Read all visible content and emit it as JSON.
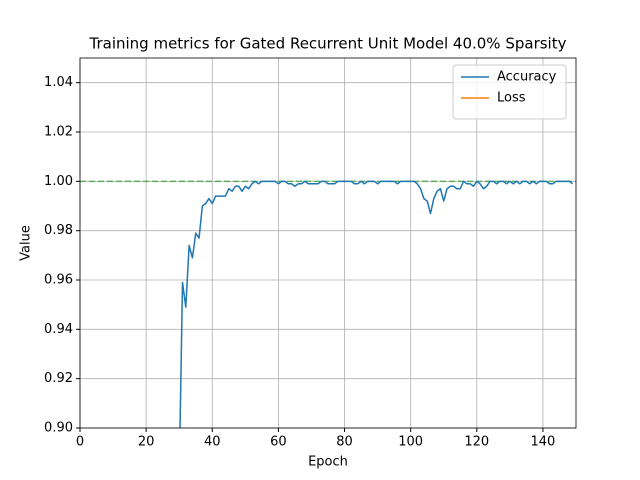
{
  "chart_data": {
    "type": "line",
    "title": "Training metrics for Gated Recurrent Unit Model 40.0% Sparsity",
    "x_label": "Epoch",
    "y_label": "Value",
    "x": [
      30,
      31,
      32,
      33,
      34,
      35,
      36,
      37,
      38,
      39,
      40,
      41,
      42,
      43,
      44,
      45,
      46,
      47,
      48,
      49,
      50,
      51,
      52,
      53,
      54,
      55,
      56,
      57,
      58,
      59,
      60,
      61,
      62,
      63,
      64,
      65,
      66,
      67,
      68,
      69,
      70,
      71,
      72,
      73,
      74,
      75,
      76,
      77,
      78,
      79,
      80,
      81,
      82,
      83,
      84,
      85,
      86,
      87,
      88,
      89,
      90,
      91,
      92,
      93,
      94,
      95,
      96,
      97,
      98,
      99,
      100,
      101,
      102,
      103,
      104,
      105,
      106,
      107,
      108,
      109,
      110,
      111,
      112,
      113,
      114,
      115,
      116,
      117,
      118,
      119,
      120,
      121,
      122,
      123,
      124,
      125,
      126,
      127,
      128,
      129,
      130,
      131,
      132,
      133,
      134,
      135,
      136,
      137,
      138,
      139,
      140,
      141,
      142,
      143,
      144,
      145,
      146,
      147,
      148,
      149
    ],
    "series": [
      {
        "name": "Accuracy",
        "color": "#1f77b4",
        "values": [
          0.88,
          0.959,
          0.949,
          0.974,
          0.969,
          0.979,
          0.977,
          0.99,
          0.991,
          0.993,
          0.991,
          0.994,
          0.994,
          0.994,
          0.994,
          0.997,
          0.996,
          0.998,
          0.998,
          0.996,
          0.998,
          0.997,
          0.999,
          1.0,
          0.999,
          1.0,
          1.0,
          1.0,
          1.0,
          1.0,
          0.999,
          1.0,
          1.0,
          0.999,
          0.999,
          0.998,
          0.999,
          0.999,
          1.0,
          0.999,
          0.999,
          0.999,
          0.999,
          1.0,
          1.0,
          0.999,
          0.999,
          0.999,
          1.0,
          1.0,
          1.0,
          1.0,
          1.0,
          0.999,
          0.999,
          1.0,
          0.999,
          1.0,
          1.0,
          1.0,
          0.999,
          1.0,
          1.0,
          1.0,
          1.0,
          1.0,
          0.999,
          1.0,
          1.0,
          1.0,
          1.0,
          1.0,
          0.999,
          0.997,
          0.993,
          0.992,
          0.987,
          0.993,
          0.996,
          0.997,
          0.992,
          0.997,
          0.998,
          0.998,
          0.997,
          0.997,
          1.0,
          0.999,
          0.999,
          0.998,
          1.0,
          0.999,
          0.997,
          0.998,
          1.0,
          1.0,
          0.999,
          1.0,
          1.0,
          0.999,
          1.0,
          0.999,
          1.0,
          0.999,
          1.0,
          1.0,
          0.999,
          1.0,
          0.999,
          1.0,
          1.0,
          1.0,
          0.999,
          0.999,
          1.0,
          1.0,
          1.0,
          1.0,
          1.0,
          0.999
        ]
      },
      {
        "name": "Loss",
        "color": "#ff7f0e",
        "values": [
          null,
          null,
          null,
          null,
          null,
          null,
          null,
          null,
          null,
          null,
          null,
          null,
          null,
          null,
          null,
          null,
          null,
          null,
          null,
          null,
          null,
          null,
          null,
          null,
          null,
          null,
          null,
          null,
          null,
          null,
          null,
          null,
          null,
          null,
          null,
          null,
          null,
          null,
          null,
          null,
          null,
          null,
          null,
          null,
          null,
          null,
          null,
          null,
          null,
          null,
          null,
          null,
          null,
          null,
          null,
          null,
          null,
          null,
          null,
          null,
          null,
          null,
          null,
          null,
          null,
          null,
          null,
          null,
          null,
          null,
          null,
          null,
          null,
          null,
          null,
          null,
          null,
          null,
          null,
          null,
          null,
          null,
          null,
          null,
          null,
          null,
          null,
          null,
          null,
          null,
          null,
          null,
          null,
          null,
          null,
          null,
          null,
          null,
          null,
          null,
          null,
          null,
          null,
          null,
          null,
          null,
          null,
          null,
          null,
          null,
          null,
          null,
          null,
          null,
          null,
          null,
          null,
          null,
          null,
          null
        ]
      }
    ],
    "reference_line": {
      "value": 1.0,
      "color": "#2ca02c"
    },
    "xlim": [
      0,
      150
    ],
    "xticks": [
      0,
      20,
      40,
      60,
      80,
      100,
      120,
      140
    ],
    "ylim": [
      0.9,
      1.05
    ],
    "yticks": [
      {
        "value": 0.9,
        "label": "0.90"
      },
      0.92,
      0.94,
      0.96,
      0.98,
      {
        "value": 1.0,
        "label": "1.00"
      },
      1.02,
      1.04
    ],
    "grid": true,
    "legend": "upper right"
  }
}
